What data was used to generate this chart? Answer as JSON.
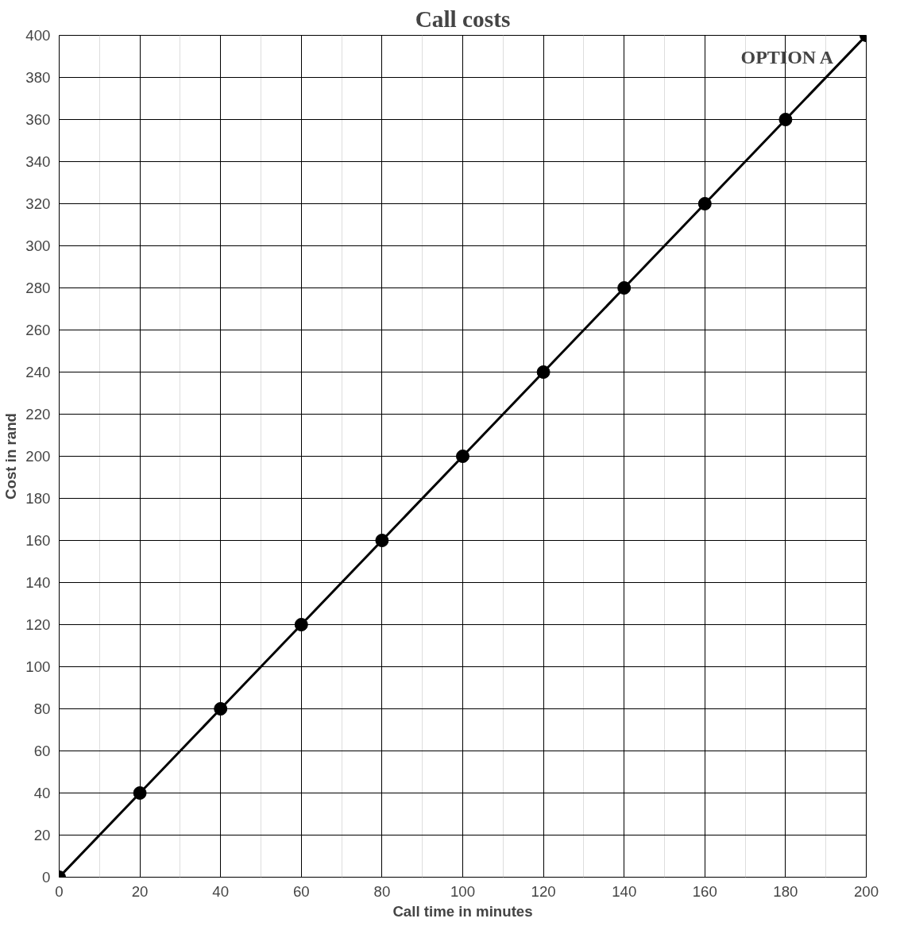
{
  "chart_data": {
    "type": "line",
    "title": "Call costs",
    "xlabel": "Call time in minutes",
    "ylabel": "Cost in rand",
    "x": [
      0,
      20,
      40,
      60,
      80,
      100,
      120,
      140,
      160,
      180,
      200
    ],
    "series": [
      {
        "name": "OPTION A",
        "color": "#000000",
        "values": [
          0,
          40,
          80,
          120,
          160,
          200,
          240,
          280,
          320,
          360,
          400
        ]
      }
    ],
    "xlim": [
      0,
      200
    ],
    "xticks": [
      0,
      20,
      40,
      60,
      80,
      100,
      120,
      140,
      160,
      180,
      200
    ],
    "ylim": [
      0,
      400
    ],
    "yticks": [
      0,
      20,
      40,
      60,
      80,
      100,
      120,
      140,
      160,
      180,
      200,
      220,
      240,
      260,
      280,
      300,
      320,
      340,
      360,
      380,
      400
    ],
    "grid": true,
    "legend": false,
    "marker": "circle",
    "line_style": "solid"
  }
}
